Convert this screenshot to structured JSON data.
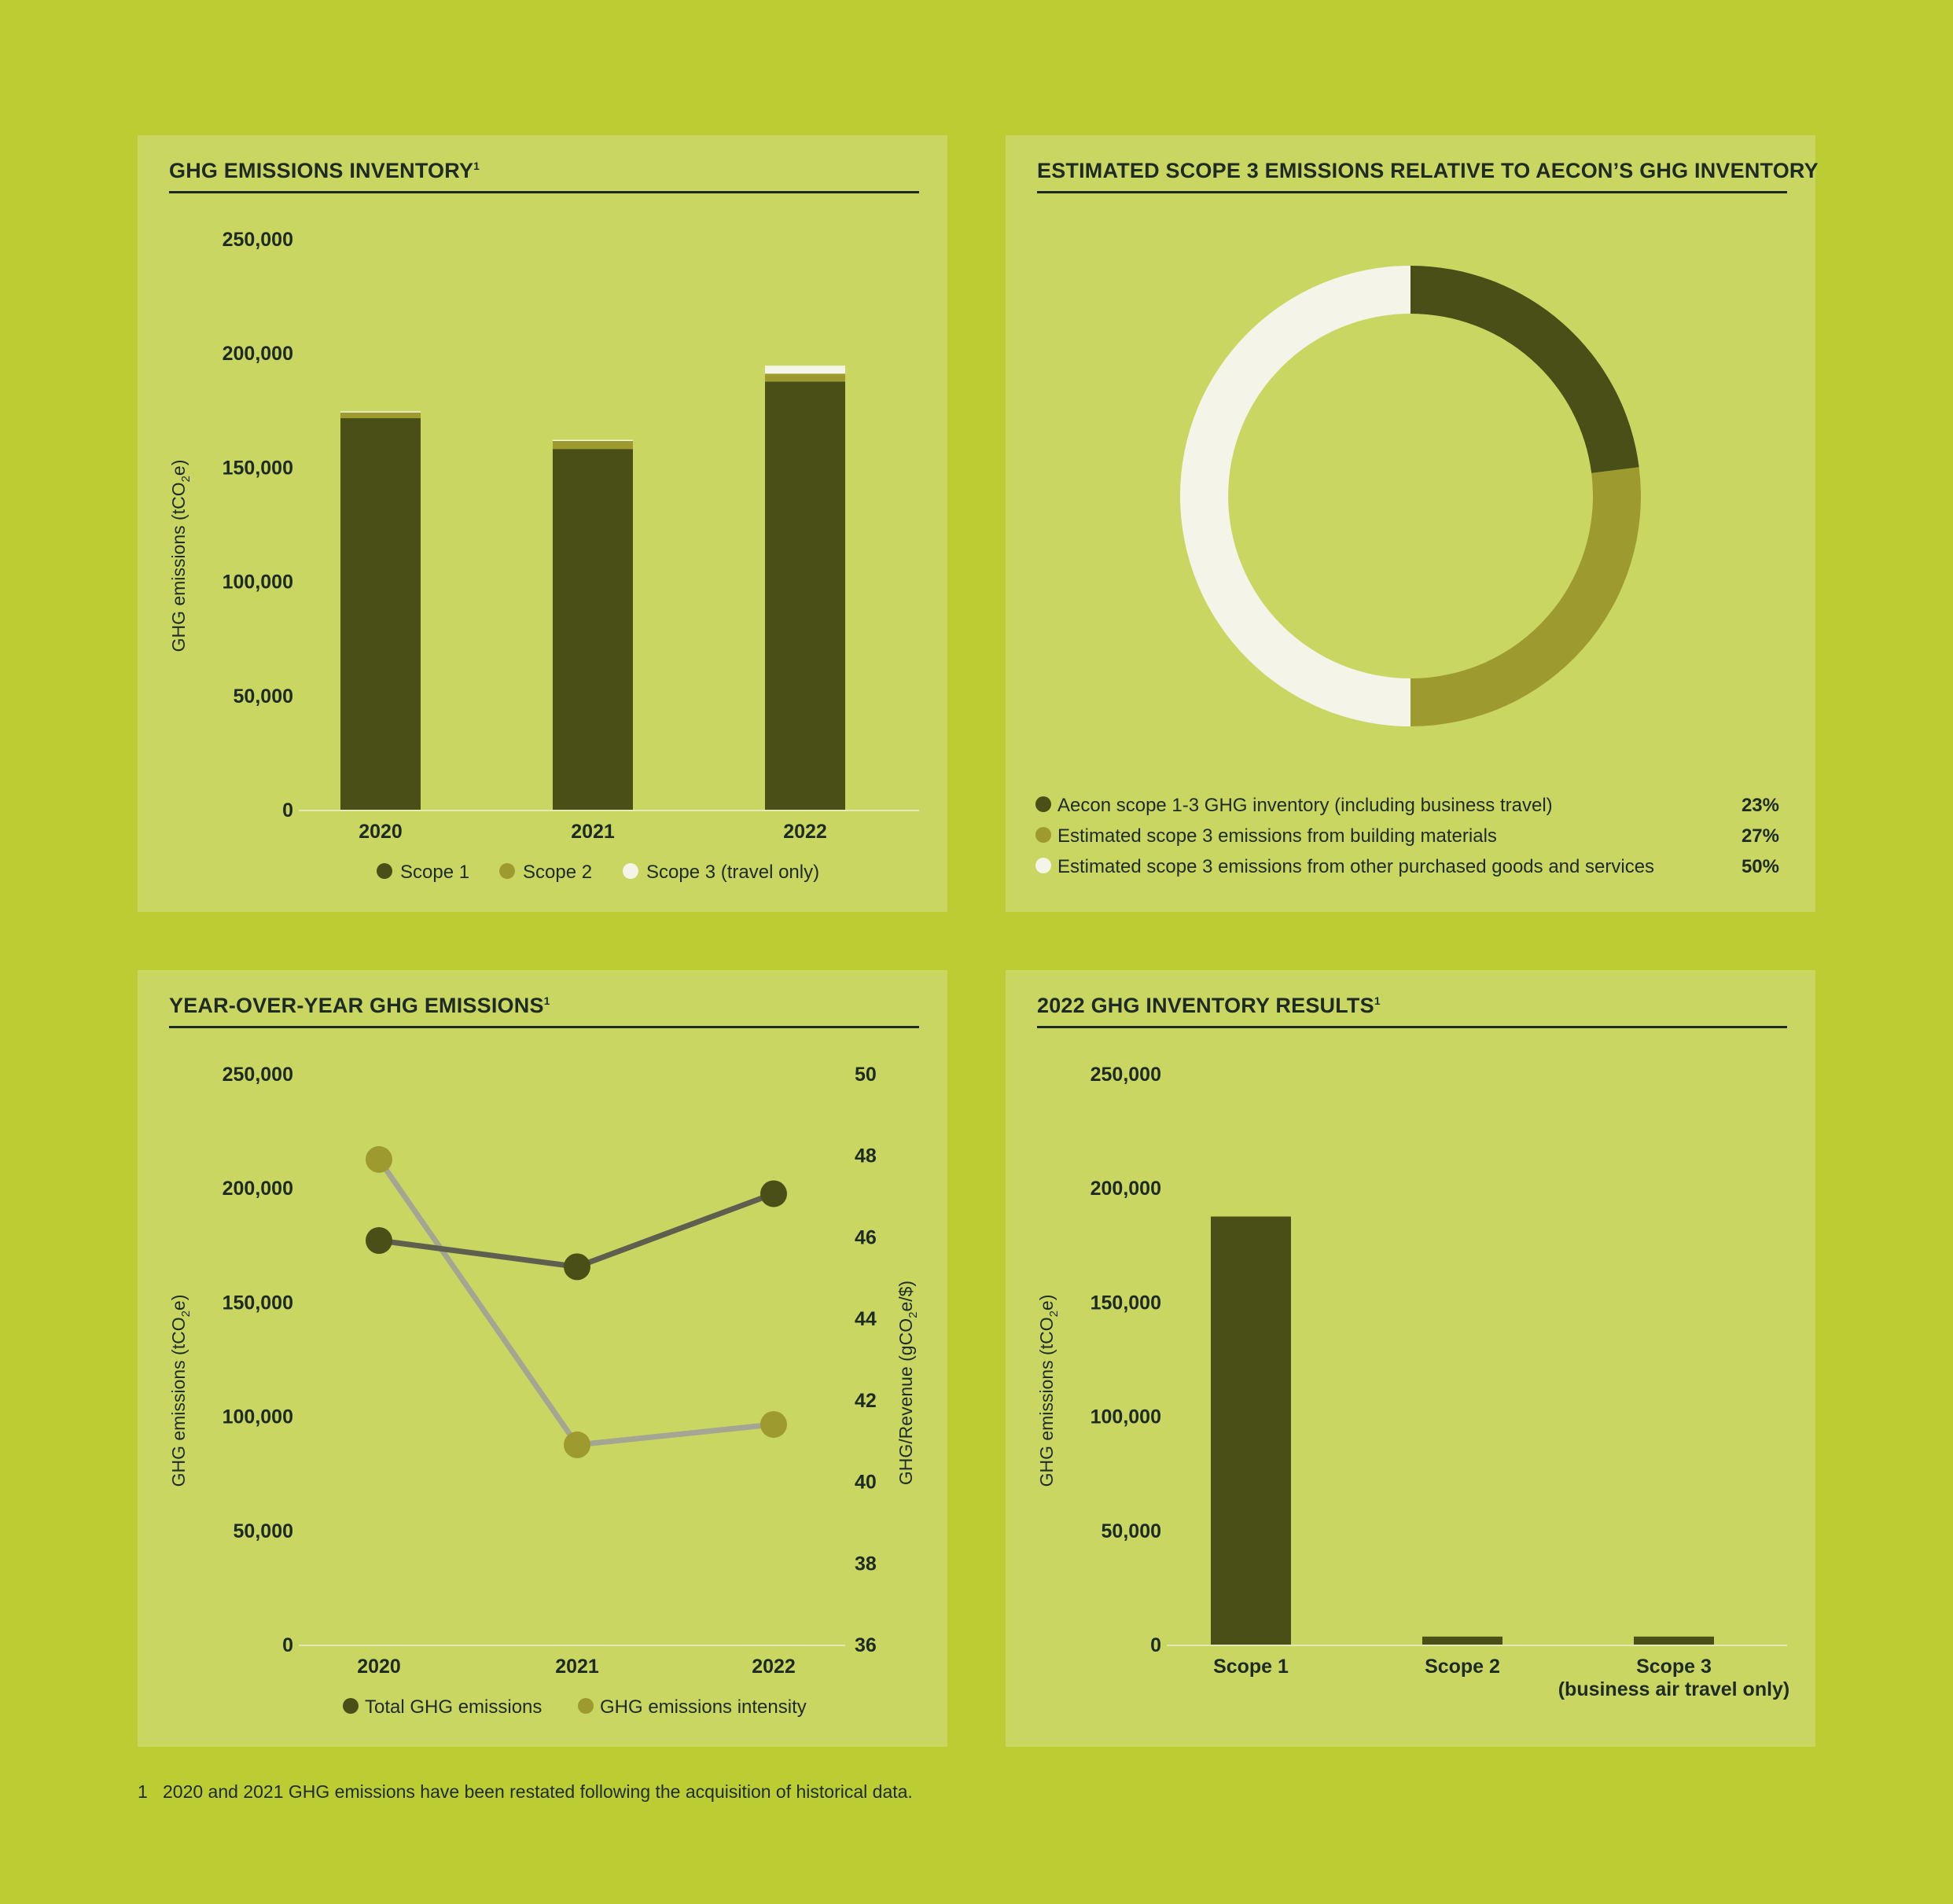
{
  "colors": {
    "scope1": "#4a4f17",
    "scope2": "#9d9b2f",
    "scope3": "#f4f5e8",
    "total_line": "#5e5f4e",
    "intensity_line": "#a5a593",
    "intensity_dot": "#9d9b2f",
    "axis": "#e4e9b6",
    "text": "#1e2b24"
  },
  "footnote": {
    "number": "1",
    "text": "2020 and 2021 GHG emissions have been restated following the acquisition of historical data."
  },
  "chart_data": [
    {
      "id": "inventory",
      "type": "bar",
      "stacked": true,
      "title": "GHG EMISSIONS INVENTORY",
      "title_sup": "1",
      "ylabel": "GHG emissions (tCO",
      "ylabel_sub": "2",
      "ylabel_tail": "e)",
      "ylim": [
        0,
        250000
      ],
      "yticks": [
        "0",
        "50,000",
        "100,000",
        "150,000",
        "200,000",
        "250,000"
      ],
      "categories": [
        "2020",
        "2021",
        "2022"
      ],
      "series": [
        {
          "name": "Scope 1",
          "color_key": "scope1",
          "values": [
            171500,
            158000,
            187500
          ]
        },
        {
          "name": "Scope 2",
          "color_key": "scope2",
          "values": [
            2500,
            3500,
            3500
          ]
        },
        {
          "name": "Scope 3 (travel only)",
          "color_key": "scope3",
          "values": [
            500,
            500,
            3500
          ]
        }
      ],
      "legend": [
        "Scope 1",
        "Scope 2",
        "Scope 3 (travel only)"
      ]
    },
    {
      "id": "scope3_relative",
      "type": "pie",
      "donut": true,
      "title": "ESTIMATED SCOPE 3 EMISSIONS RELATIVE TO AECON’S GHG INVENTORY",
      "slices": [
        {
          "label": "Aecon scope 1-3 GHG inventory (including business travel)",
          "value": 23,
          "display": "23%",
          "color_key": "scope1"
        },
        {
          "label": "Estimated scope 3 emissions from building materials",
          "value": 27,
          "display": "27%",
          "color_key": "scope2"
        },
        {
          "label": "Estimated scope 3 emissions from other purchased goods and services",
          "value": 50,
          "display": "50%",
          "color_key": "scope3"
        }
      ]
    },
    {
      "id": "yoy",
      "type": "line",
      "title": "YEAR-OVER-YEAR GHG EMISSIONS",
      "title_sup": "1",
      "ylabel": "GHG emissions (tCO",
      "ylabel_sub": "2",
      "ylabel_tail": "e)",
      "y2label": "GHG/Revenue (gCO",
      "y2label_sub": "2",
      "y2label_tail": "e/$)",
      "ylim": [
        0,
        250000
      ],
      "yticks": [
        "0",
        "50,000",
        "100,000",
        "150,000",
        "200,000",
        "250,000"
      ],
      "y2lim": [
        36,
        50
      ],
      "y2ticks": [
        "36",
        "38",
        "40",
        "42",
        "44",
        "46",
        "48",
        "50"
      ],
      "categories": [
        "2020",
        "2021",
        "2022"
      ],
      "series": [
        {
          "name": "Total GHG emissions",
          "axis": "left",
          "values": [
            177000,
            165500,
            197500
          ]
        },
        {
          "name": "GHG emissions intensity",
          "axis": "right",
          "values": [
            47.9,
            40.9,
            41.4
          ]
        }
      ],
      "legend": [
        "Total GHG emissions",
        "GHG emissions intensity"
      ]
    },
    {
      "id": "results2022",
      "type": "bar",
      "title": "2022 GHG INVENTORY RESULTS",
      "title_sup": "1",
      "ylabel": "GHG emissions (tCO",
      "ylabel_sub": "2",
      "ylabel_tail": "e)",
      "ylim": [
        0,
        250000
      ],
      "yticks": [
        "0",
        "50,000",
        "100,000",
        "150,000",
        "200,000",
        "250,000"
      ],
      "categories": [
        "Scope 1",
        "Scope 2",
        "Scope 3"
      ],
      "category_notes": [
        "",
        "",
        "(business air travel only)"
      ],
      "values": [
        187500,
        3500,
        3500
      ]
    }
  ]
}
